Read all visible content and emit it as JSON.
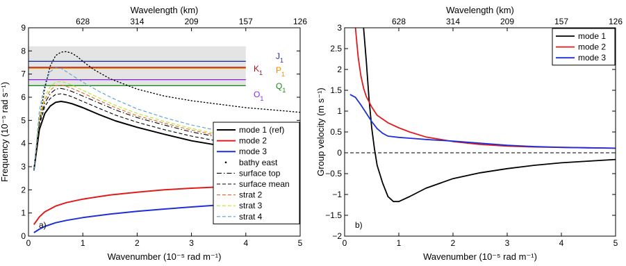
{
  "chart_data": [
    {
      "panel_label": "a)",
      "type": "line",
      "xlabel": "Wavenumber (10⁻⁵ rad m⁻¹)",
      "ylabel": "Frequency (10⁻⁵ rad s⁻¹)",
      "top_xlabel": "Wavelength (km)",
      "xlim": [
        0,
        5
      ],
      "ylim": [
        0,
        9
      ],
      "xticks": [
        "0",
        "1",
        "2",
        "3",
        "4",
        "5"
      ],
      "yticks": [
        "0",
        "1",
        "2",
        "3",
        "4",
        "5",
        "6",
        "7",
        "8",
        "9"
      ],
      "top_ticks": [
        {
          "k": 1,
          "label": "628"
        },
        {
          "k": 2,
          "label": "314"
        },
        {
          "k": 3,
          "label": "209"
        },
        {
          "k": 4,
          "label": "157"
        },
        {
          "k": 5,
          "label": "126"
        }
      ],
      "shaded_band": {
        "y": [
          6.5,
          8.2
        ],
        "x": [
          0,
          4
        ],
        "color": "#e4e4e4"
      },
      "tidal_lines": [
        {
          "label": "K",
          "sub": "1",
          "y": 7.29,
          "color": "#a0141e",
          "x_end": 4
        },
        {
          "label": "O",
          "sub": "1",
          "y": 6.76,
          "color": "#8a2be2",
          "x_end": 4
        },
        {
          "label": "J",
          "sub": "1",
          "y": 7.55,
          "color": "#1f2fa8",
          "x_end": 4
        },
        {
          "label": "P",
          "sub": "1",
          "y": 7.25,
          "color": "#f28c00",
          "x_end": 4
        },
        {
          "label": "Q",
          "sub": "1",
          "y": 6.5,
          "color": "#1a8a1a",
          "x_end": 4
        }
      ],
      "series": [
        {
          "name": "mode 1 (ref)",
          "color": "#000000",
          "dash": "solid",
          "width": 2,
          "x": [
            0.1,
            0.2,
            0.3,
            0.4,
            0.5,
            0.6,
            0.7,
            0.8,
            1.0,
            1.3,
            1.6,
            2.0,
            2.5,
            3.0,
            3.5,
            4.0
          ],
          "y": [
            2.85,
            4.6,
            5.3,
            5.62,
            5.78,
            5.82,
            5.78,
            5.72,
            5.55,
            5.25,
            4.98,
            4.7,
            4.4,
            4.12,
            3.92,
            3.78
          ]
        },
        {
          "name": "mode 2",
          "color": "#e11b1b",
          "dash": "solid",
          "width": 2,
          "x": [
            0.1,
            0.2,
            0.3,
            0.5,
            0.7,
            1.0,
            1.5,
            2.0,
            2.5,
            3.0,
            3.5,
            4.0
          ],
          "y": [
            0.5,
            0.83,
            1.05,
            1.3,
            1.45,
            1.6,
            1.78,
            1.9,
            2.0,
            2.07,
            2.12,
            2.16
          ]
        },
        {
          "name": "mode 3",
          "color": "#1f2fd6",
          "dash": "solid",
          "width": 2,
          "x": [
            0.1,
            0.2,
            0.3,
            0.5,
            0.7,
            1.0,
            1.5,
            2.0,
            2.5,
            3.0,
            3.5,
            4.0
          ],
          "y": [
            0.15,
            0.3,
            0.42,
            0.58,
            0.68,
            0.8,
            0.95,
            1.07,
            1.17,
            1.26,
            1.34,
            1.4
          ]
        },
        {
          "name": "bathy east",
          "color": "#000000",
          "dash": "dotted",
          "width": 1.4,
          "x": [
            0.1,
            0.2,
            0.3,
            0.4,
            0.5,
            0.6,
            0.7,
            0.8,
            0.9,
            1.0,
            1.2,
            1.5,
            2.0,
            2.5,
            3.0,
            3.5,
            4.0,
            4.5,
            5.0
          ],
          "y": [
            2.85,
            5.0,
            6.4,
            7.35,
            7.8,
            7.95,
            7.97,
            7.9,
            7.75,
            7.55,
            7.2,
            6.8,
            6.35,
            6.05,
            5.85,
            5.7,
            5.55,
            5.45,
            5.35
          ]
        },
        {
          "name": "surface top",
          "color": "#000000",
          "dash": "dashdot",
          "width": 1.1,
          "x": [
            0.1,
            0.2,
            0.3,
            0.4,
            0.5,
            0.6,
            0.7,
            0.8,
            1.0,
            1.3,
            1.6,
            2.0,
            2.5,
            3.0,
            3.5,
            4.0
          ],
          "y": [
            2.85,
            4.9,
            5.75,
            6.15,
            6.35,
            6.38,
            6.33,
            6.25,
            6.05,
            5.75,
            5.45,
            5.12,
            4.8,
            4.5,
            4.28,
            4.1
          ]
        },
        {
          "name": "surface mean",
          "color": "#000000",
          "dash": "dashed",
          "width": 1.1,
          "x": [
            0.1,
            0.2,
            0.3,
            0.4,
            0.5,
            0.6,
            0.7,
            0.8,
            1.0,
            1.3,
            1.6,
            2.0,
            2.5,
            3.0,
            3.5,
            4.0
          ],
          "y": [
            2.85,
            4.8,
            5.6,
            5.95,
            6.12,
            6.15,
            6.1,
            6.02,
            5.82,
            5.52,
            5.23,
            4.92,
            4.6,
            4.32,
            4.1,
            3.95
          ]
        },
        {
          "name": "strat 2",
          "color": "#e8632a",
          "dash": "dashed",
          "width": 1.1,
          "x": [
            0.1,
            0.2,
            0.3,
            0.4,
            0.5,
            0.6,
            0.7,
            0.8,
            1.0,
            1.3,
            1.6,
            2.0,
            2.5,
            3.0,
            3.5,
            4.0
          ],
          "y": [
            2.85,
            5.0,
            5.9,
            6.3,
            6.5,
            6.52,
            6.47,
            6.38,
            6.18,
            5.86,
            5.55,
            5.2,
            4.88,
            4.58,
            4.34,
            4.15
          ]
        },
        {
          "name": "strat 3",
          "color": "#b5e61d",
          "dash": "dashed",
          "width": 1.1,
          "x": [
            0.1,
            0.2,
            0.3,
            0.4,
            0.5,
            0.6,
            0.7,
            0.8,
            1.0,
            1.3,
            1.6,
            2.0,
            2.5,
            3.0,
            3.5,
            4.0
          ],
          "y": [
            2.85,
            5.1,
            6.05,
            6.45,
            6.65,
            6.68,
            6.62,
            6.52,
            6.3,
            5.97,
            5.65,
            5.3,
            4.96,
            4.65,
            4.4,
            4.2
          ]
        },
        {
          "name": "strat 4",
          "color": "#5b9bd5",
          "dash": "dashed",
          "width": 1.1,
          "x": [
            0.1,
            0.2,
            0.3,
            0.4,
            0.5,
            0.6,
            0.7,
            0.8,
            1.0,
            1.3,
            1.6,
            2.0,
            2.5,
            3.0,
            3.5,
            4.0,
            4.5,
            5.0
          ],
          "y": [
            2.85,
            5.4,
            6.6,
            7.1,
            7.28,
            7.25,
            7.1,
            6.95,
            6.65,
            6.25,
            5.9,
            5.5,
            5.12,
            4.8,
            4.55,
            4.35,
            4.2,
            4.07
          ]
        }
      ],
      "legend_placement": "bottom-right"
    },
    {
      "panel_label": "b)",
      "type": "line",
      "xlabel": "Wavenumber (10⁻⁵ rad m⁻¹)",
      "ylabel": "Group velocity (m s⁻¹)",
      "top_xlabel": "Wavelength (km)",
      "xlim": [
        0,
        5
      ],
      "ylim": [
        -2,
        3
      ],
      "xticks": [
        "0",
        "1",
        "2",
        "3",
        "4",
        "5"
      ],
      "yticks": [
        "−2",
        "−1.5",
        "−1",
        "−0.5",
        "0",
        "0.5",
        "1",
        "1.5",
        "2",
        "2.5",
        "3"
      ],
      "top_ticks": [
        {
          "k": 1,
          "label": "628"
        },
        {
          "k": 2,
          "label": "314"
        },
        {
          "k": 3,
          "label": "209"
        },
        {
          "k": 4,
          "label": "157"
        },
        {
          "k": 5,
          "label": "126"
        }
      ],
      "zero_line": {
        "y": 0,
        "dash": "dashed"
      },
      "series": [
        {
          "name": "mode 1",
          "color": "#000000",
          "dash": "solid",
          "width": 1.8,
          "x": [
            0.35,
            0.4,
            0.45,
            0.5,
            0.55,
            0.6,
            0.7,
            0.8,
            0.9,
            1.0,
            1.2,
            1.5,
            2.0,
            2.5,
            3.0,
            3.5,
            4.0,
            4.5,
            5.0
          ],
          "y": [
            3.0,
            2.2,
            1.3,
            0.6,
            0.1,
            -0.3,
            -0.72,
            -1.05,
            -1.17,
            -1.17,
            -1.05,
            -0.85,
            -0.62,
            -0.48,
            -0.38,
            -0.3,
            -0.24,
            -0.2,
            -0.16
          ]
        },
        {
          "name": "mode 2",
          "color": "#e11b1b",
          "dash": "solid",
          "width": 1.8,
          "x": [
            0.2,
            0.25,
            0.3,
            0.35,
            0.4,
            0.5,
            0.6,
            0.8,
            1.0,
            1.2,
            1.5,
            2.0,
            2.5,
            3.0,
            3.5,
            4.0,
            4.5,
            5.0
          ],
          "y": [
            3.0,
            2.3,
            1.85,
            1.55,
            1.35,
            1.1,
            0.9,
            0.72,
            0.6,
            0.5,
            0.38,
            0.27,
            0.2,
            0.16,
            0.14,
            0.13,
            0.12,
            0.11
          ]
        },
        {
          "name": "mode 3",
          "color": "#1f2fd6",
          "dash": "solid",
          "width": 1.8,
          "x": [
            0.1,
            0.2,
            0.3,
            0.4,
            0.5,
            0.6,
            0.7,
            0.8,
            1.0,
            1.2,
            1.5,
            2.0,
            2.5,
            3.0,
            3.5,
            4.0,
            4.5,
            5.0
          ],
          "y": [
            1.4,
            1.33,
            1.15,
            0.95,
            0.75,
            0.58,
            0.47,
            0.4,
            0.37,
            0.35,
            0.32,
            0.28,
            0.23,
            0.18,
            0.15,
            0.13,
            0.12,
            0.11
          ]
        }
      ],
      "legend_placement": "top-right"
    }
  ]
}
